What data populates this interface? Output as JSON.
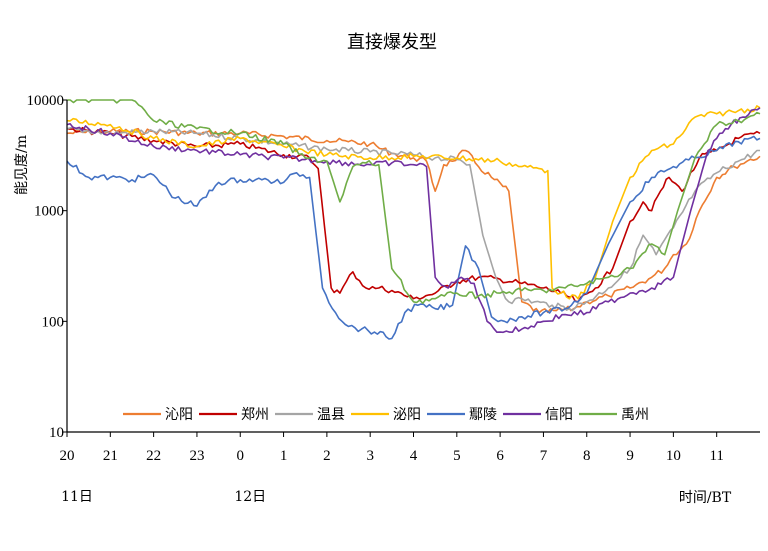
{
  "chart_data": {
    "type": "line",
    "title": "直接爆发型",
    "ylabel": "能见度/m",
    "xlabel": "时间/BT",
    "yscale": "log",
    "ylim": [
      10,
      10000
    ],
    "xlim": [
      20,
      36
    ],
    "y_ticks": [
      {
        "value": 10,
        "label": "10"
      },
      {
        "value": 100,
        "label": "100"
      },
      {
        "value": 1000,
        "label": "1000"
      },
      {
        "value": 10000,
        "label": "10000"
      }
    ],
    "x_ticks": [
      {
        "value": 20,
        "label": "20"
      },
      {
        "value": 21,
        "label": "21"
      },
      {
        "value": 22,
        "label": "22"
      },
      {
        "value": 23,
        "label": "23"
      },
      {
        "value": 24,
        "label": "0"
      },
      {
        "value": 25,
        "label": "1"
      },
      {
        "value": 26,
        "label": "2"
      },
      {
        "value": 27,
        "label": "3"
      },
      {
        "value": 28,
        "label": "4"
      },
      {
        "value": 29,
        "label": "5"
      },
      {
        "value": 30,
        "label": "6"
      },
      {
        "value": 31,
        "label": "7"
      },
      {
        "value": 32,
        "label": "8"
      },
      {
        "value": 33,
        "label": "9"
      },
      {
        "value": 34,
        "label": "10"
      },
      {
        "value": 35,
        "label": "11"
      }
    ],
    "date_labels": [
      {
        "x": 20,
        "label": "11日"
      },
      {
        "x": 24,
        "label": "12日"
      }
    ],
    "grid": false,
    "legend_position": "bottom",
    "series": [
      {
        "name": "沁阳",
        "color": "#ED7D31",
        "x": [
          20,
          21,
          22,
          23,
          24,
          25,
          26,
          26.5,
          27,
          27.5,
          28,
          28.3,
          28.5,
          28.7,
          28.9,
          29.2,
          29.5,
          29.8,
          30.2,
          30.5,
          30.9,
          31.3,
          31.7,
          32,
          32.5,
          33,
          33.5,
          33.8,
          34,
          34.3,
          34.6,
          35,
          35.4,
          35.7,
          36
        ],
        "y": [
          5000,
          5200,
          5200,
          5000,
          5000,
          4700,
          4300,
          4200,
          4000,
          3300,
          3000,
          2800,
          1500,
          2600,
          2800,
          3500,
          2500,
          2000,
          1500,
          150,
          120,
          125,
          130,
          150,
          170,
          200,
          250,
          300,
          400,
          500,
          1000,
          2000,
          2500,
          2800,
          3100
        ]
      },
      {
        "name": "郑州",
        "color": "#C00000",
        "x": [
          20,
          21,
          22,
          23,
          24,
          25,
          25.6,
          25.8,
          26.1,
          26.3,
          26.6,
          26.9,
          27.2,
          27.5,
          28,
          28.5,
          29,
          29.5,
          30,
          30.5,
          31,
          31.4,
          31.8,
          32.2,
          32.6,
          33,
          33.3,
          33.5,
          33.7,
          33.9,
          34.2,
          34.6,
          35,
          35.5,
          36
        ],
        "y": [
          5500,
          5000,
          4300,
          3800,
          4000,
          3200,
          3000,
          2400,
          200,
          180,
          280,
          200,
          200,
          190,
          160,
          180,
          230,
          250,
          240,
          220,
          200,
          180,
          150,
          200,
          300,
          800,
          1200,
          1000,
          1500,
          2000,
          1500,
          3000,
          3500,
          4500,
          5000
        ]
      },
      {
        "name": "温县",
        "color": "#A5A5A5",
        "x": [
          20,
          21,
          22,
          23,
          24,
          25,
          26,
          26.5,
          27,
          27.5,
          28,
          28.5,
          29,
          29.3,
          29.6,
          29.9,
          30.2,
          30.5,
          30.8,
          31.2,
          31.6,
          32,
          32.5,
          33,
          33.3,
          33.6,
          34,
          34.5,
          35,
          35.5,
          36
        ],
        "y": [
          5500,
          5000,
          5200,
          5000,
          4500,
          4000,
          3600,
          3500,
          3400,
          3300,
          3200,
          3000,
          2900,
          2600,
          600,
          250,
          150,
          160,
          150,
          140,
          130,
          150,
          200,
          300,
          600,
          400,
          700,
          1500,
          2200,
          2800,
          3500
        ]
      },
      {
        "name": "泌阳",
        "color": "#FFC000",
        "x": [
          20,
          21,
          22,
          23,
          24,
          25,
          26,
          27,
          28,
          29,
          30,
          30.5,
          30.9,
          31.1,
          31.2,
          31.4,
          31.8,
          32.2,
          32.6,
          33,
          33.5,
          34,
          34.5,
          35,
          35.5,
          36
        ],
        "y": [
          6500,
          6000,
          4500,
          3800,
          4500,
          3800,
          3200,
          3000,
          3100,
          3000,
          2800,
          2500,
          2400,
          2300,
          200,
          180,
          160,
          250,
          800,
          2000,
          3500,
          4000,
          7000,
          7500,
          8000,
          8500
        ]
      },
      {
        "name": "鄢陵",
        "color": "#4472C4",
        "x": [
          20,
          20.5,
          21,
          21.5,
          22,
          22.5,
          23,
          23.5,
          24,
          24.5,
          25,
          25.3,
          25.6,
          25.9,
          26.2,
          26.5,
          26.8,
          27.1,
          27.5,
          27.8,
          28.1,
          28.5,
          28.9,
          29.2,
          29.5,
          29.8,
          30.1,
          30.5,
          31,
          31.5,
          32,
          32.5,
          33,
          33.5,
          34,
          34.5,
          35,
          35.5,
          36
        ],
        "y": [
          2800,
          2000,
          2000,
          1900,
          2100,
          1300,
          1100,
          1800,
          1900,
          1900,
          1800,
          2200,
          2000,
          200,
          120,
          90,
          85,
          80,
          70,
          120,
          140,
          130,
          140,
          480,
          300,
          110,
          100,
          110,
          120,
          130,
          180,
          500,
          1200,
          2000,
          2500,
          3000,
          3500,
          4200,
          4500
        ]
      },
      {
        "name": "信阳",
        "color": "#7030A0",
        "x": [
          20,
          21,
          22,
          23,
          24,
          25,
          26,
          27,
          27.5,
          28,
          28.3,
          28.5,
          28.8,
          29.1,
          29.4,
          29.7,
          30,
          30.5,
          31,
          31.5,
          32,
          32.5,
          33,
          33.5,
          34,
          34.4,
          34.8,
          35.2,
          35.6,
          36
        ],
        "y": [
          6000,
          5000,
          3800,
          3500,
          3200,
          3000,
          2800,
          2600,
          2700,
          2600,
          2500,
          250,
          200,
          250,
          220,
          100,
          80,
          85,
          100,
          115,
          120,
          150,
          180,
          200,
          250,
          1000,
          3500,
          5500,
          7000,
          8500
        ]
      },
      {
        "name": "禹州",
        "color": "#70AD47",
        "x": [
          20,
          20.3,
          20.7,
          21,
          21.3,
          21.5,
          21.8,
          22,
          23,
          24,
          25,
          25.5,
          26,
          26.3,
          26.6,
          26.9,
          27.2,
          27.5,
          28,
          28.5,
          29,
          29.5,
          30,
          30.5,
          31,
          31.5,
          32,
          32.5,
          33,
          33.5,
          33.8,
          34.1,
          34.5,
          35,
          35.5,
          36
        ],
        "y": [
          10000,
          10000,
          10000,
          10000,
          10000,
          10000,
          8000,
          6500,
          5500,
          5000,
          4000,
          3000,
          2800,
          1200,
          2500,
          2700,
          2600,
          300,
          150,
          160,
          180,
          170,
          180,
          190,
          190,
          200,
          220,
          250,
          300,
          500,
          400,
          1000,
          3000,
          6000,
          6500,
          7500
        ]
      }
    ]
  }
}
